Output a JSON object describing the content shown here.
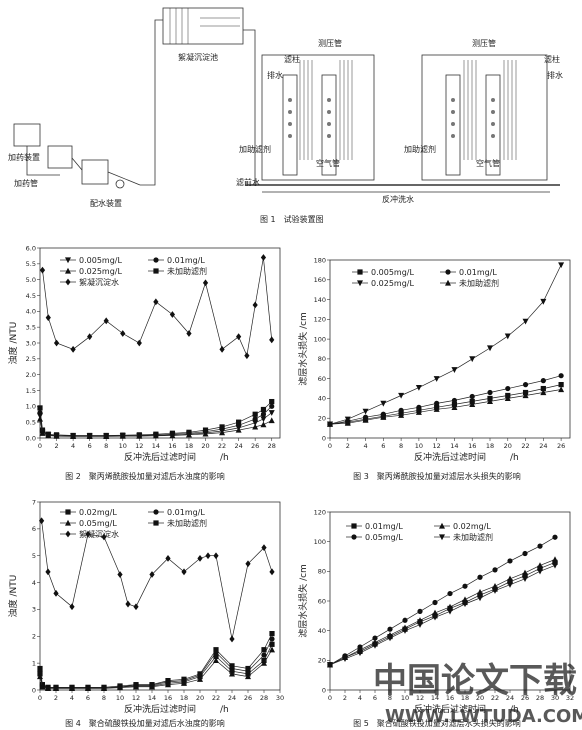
{
  "fig1": {
    "caption": "图 1　试验装置图",
    "labels": {
      "settle": "絮凝沉淀池",
      "dosing_device": "加药装置",
      "dosing_pipe": "加药管",
      "water_device": "配水装置",
      "piezo_left": "测压管",
      "piezo_right": "测压管",
      "column_left": "滤柱",
      "column_right": "滤柱",
      "drain_left": "排水",
      "drain_right": "排水",
      "aid_left": "加助滤剂",
      "aid_right": "加助滤剂",
      "air_left": "空气管",
      "air_right": "空气管",
      "filtered": "滤前水",
      "backwash": "反冲洗水"
    }
  },
  "fig2": {
    "caption": "图 2　聚丙烯酰胺投加量对滤后水浊度的影响",
    "chart_data": {
      "type": "line",
      "xlabel": "反冲洗后过滤时间",
      "xunit": "/h",
      "ylabel": "浊度 /NTU",
      "xlim": [
        0,
        29
      ],
      "ylim": [
        0,
        6.0
      ],
      "xticks": [
        0,
        2,
        4,
        6,
        8,
        10,
        12,
        14,
        16,
        18,
        20,
        22,
        24,
        26,
        28
      ],
      "yticks": [
        0.0,
        0.5,
        1.0,
        1.5,
        2.0,
        2.5,
        3.0,
        3.5,
        4.0,
        4.5,
        5.0,
        5.5,
        6.0
      ],
      "legend": [
        "0.005mg/L",
        "0.01mg/L",
        "0.025mg/L",
        "未加助滤剂",
        "絮凝沉淀水"
      ],
      "series": [
        {
          "name": "絮凝沉淀水",
          "marker": "diamond",
          "x": [
            0.3,
            1,
            2,
            4,
            6,
            8,
            10,
            12,
            14,
            16,
            18,
            20,
            22,
            24,
            25,
            26,
            27,
            28
          ],
          "y": [
            5.3,
            3.8,
            3.0,
            2.8,
            3.2,
            3.7,
            3.3,
            3.0,
            4.3,
            3.9,
            3.3,
            4.9,
            2.8,
            3.2,
            2.6,
            4.2,
            5.7,
            3.1
          ]
        },
        {
          "name": "未加助滤剂",
          "marker": "square",
          "x": [
            0,
            0.3,
            1,
            2,
            4,
            6,
            8,
            10,
            12,
            14,
            16,
            18,
            20,
            22,
            24,
            26,
            27,
            28
          ],
          "y": [
            0.95,
            0.25,
            0.12,
            0.1,
            0.08,
            0.08,
            0.08,
            0.09,
            0.1,
            0.12,
            0.15,
            0.18,
            0.25,
            0.35,
            0.5,
            0.75,
            0.9,
            1.15
          ]
        },
        {
          "name": "0.01mg/L",
          "marker": "circle",
          "x": [
            0,
            0.3,
            1,
            2,
            4,
            6,
            8,
            10,
            12,
            14,
            16,
            18,
            20,
            22,
            24,
            26,
            27,
            28
          ],
          "y": [
            0.8,
            0.2,
            0.1,
            0.08,
            0.07,
            0.07,
            0.07,
            0.08,
            0.08,
            0.1,
            0.12,
            0.15,
            0.2,
            0.28,
            0.4,
            0.6,
            0.75,
            1.0
          ]
        },
        {
          "name": "0.005mg/L",
          "marker": "tri-down",
          "x": [
            0,
            0.3,
            1,
            2,
            4,
            6,
            8,
            10,
            12,
            14,
            16,
            18,
            20,
            22,
            24,
            26,
            27,
            28
          ],
          "y": [
            0.7,
            0.18,
            0.09,
            0.07,
            0.06,
            0.06,
            0.06,
            0.07,
            0.07,
            0.08,
            0.1,
            0.12,
            0.16,
            0.22,
            0.32,
            0.48,
            0.6,
            0.8
          ]
        },
        {
          "name": "0.025mg/L",
          "marker": "tri-up",
          "x": [
            0,
            0.3,
            1,
            2,
            4,
            6,
            8,
            10,
            12,
            14,
            16,
            18,
            20,
            22,
            24,
            26,
            27,
            28
          ],
          "y": [
            0.6,
            0.15,
            0.08,
            0.06,
            0.05,
            0.05,
            0.05,
            0.06,
            0.06,
            0.07,
            0.08,
            0.1,
            0.13,
            0.17,
            0.25,
            0.35,
            0.42,
            0.55
          ]
        }
      ]
    }
  },
  "fig3": {
    "caption": "图 3　聚丙烯酰胺投加量对滤层水头损失的影响",
    "chart_data": {
      "type": "line",
      "xlabel": "反冲洗后过滤时间",
      "xunit": "/h",
      "ylabel": "滤层水头损失 /cm",
      "xlim": [
        0,
        27
      ],
      "ylim": [
        0,
        180
      ],
      "xticks": [
        0,
        2,
        4,
        6,
        8,
        10,
        12,
        14,
        16,
        18,
        20,
        22,
        24,
        26
      ],
      "yticks": [
        0,
        20,
        40,
        60,
        80,
        100,
        120,
        140,
        160,
        180
      ],
      "legend": [
        "0.005mg/L",
        "0.01mg/L",
        "0.025mg/L",
        "未加助滤剂"
      ],
      "series": [
        {
          "name": "0.025mg/L",
          "marker": "tri-down",
          "x": [
            0,
            2,
            4,
            6,
            8,
            10,
            12,
            14,
            16,
            18,
            20,
            22,
            24,
            26
          ],
          "y": [
            14,
            19,
            27,
            35,
            43,
            51,
            60,
            69,
            80,
            91,
            103,
            118,
            138,
            175
          ]
        },
        {
          "name": "0.01mg/L",
          "marker": "circle",
          "x": [
            0,
            2,
            4,
            6,
            8,
            10,
            12,
            14,
            16,
            18,
            20,
            22,
            24,
            26
          ],
          "y": [
            14,
            17,
            21,
            24,
            28,
            31,
            35,
            38,
            42,
            46,
            50,
            54,
            58,
            63
          ]
        },
        {
          "name": "0.005mg/L",
          "marker": "square",
          "x": [
            0,
            2,
            4,
            6,
            8,
            10,
            12,
            14,
            16,
            18,
            20,
            22,
            24,
            26
          ],
          "y": [
            14,
            16,
            19,
            22,
            25,
            28,
            31,
            34,
            37,
            40,
            43,
            46,
            50,
            54
          ]
        },
        {
          "name": "未加助滤剂",
          "marker": "tri-up",
          "x": [
            0,
            2,
            4,
            6,
            8,
            10,
            12,
            14,
            16,
            18,
            20,
            22,
            24,
            26
          ],
          "y": [
            14,
            15,
            18,
            21,
            23,
            26,
            29,
            31,
            34,
            37,
            40,
            43,
            46,
            49
          ]
        }
      ]
    }
  },
  "fig4": {
    "caption": "图 4　聚合硫酸铁投加量对滤后水浊度的影响",
    "chart_data": {
      "type": "line",
      "xlabel": "反冲洗后过滤时间",
      "xunit": "/h",
      "ylabel": "浊度 /NTU",
      "xlim": [
        0,
        30
      ],
      "ylim": [
        0,
        7
      ],
      "xticks": [
        0,
        2,
        4,
        6,
        8,
        10,
        12,
        14,
        16,
        18,
        20,
        22,
        24,
        26,
        28,
        30
      ],
      "yticks": [
        0,
        1,
        2,
        3,
        4,
        5,
        6,
        7
      ],
      "legend": [
        "0.02mg/L",
        "0.01mg/L",
        "0.05mg/L",
        "未加助滤剂",
        "絮凝沉淀水"
      ],
      "series": [
        {
          "name": "絮凝沉淀水",
          "marker": "diamond",
          "x": [
            0.2,
            1,
            2,
            4,
            6,
            8,
            10,
            11,
            12,
            14,
            16,
            18,
            20,
            21,
            22,
            24,
            26,
            28,
            29
          ],
          "y": [
            6.3,
            4.4,
            3.6,
            3.1,
            5.8,
            5.7,
            4.3,
            3.2,
            3.1,
            4.3,
            4.9,
            4.4,
            4.9,
            5.0,
            5.0,
            1.9,
            4.7,
            5.3,
            4.4
          ]
        },
        {
          "name": "未加助滤剂",
          "marker": "square",
          "x": [
            0,
            0.3,
            1,
            2,
            4,
            6,
            8,
            10,
            12,
            14,
            16,
            18,
            20,
            22,
            24,
            26,
            28,
            29
          ],
          "y": [
            0.8,
            0.2,
            0.1,
            0.1,
            0.1,
            0.1,
            0.1,
            0.15,
            0.2,
            0.2,
            0.35,
            0.4,
            0.6,
            1.5,
            0.9,
            0.8,
            1.5,
            2.1
          ]
        },
        {
          "name": "0.01mg/L",
          "marker": "circle",
          "x": [
            0,
            0.3,
            1,
            2,
            4,
            6,
            8,
            10,
            12,
            14,
            16,
            18,
            20,
            22,
            24,
            26,
            28,
            29
          ],
          "y": [
            0.7,
            0.18,
            0.08,
            0.08,
            0.08,
            0.08,
            0.08,
            0.12,
            0.18,
            0.18,
            0.3,
            0.35,
            0.55,
            1.4,
            0.8,
            0.7,
            1.3,
            1.9
          ]
        },
        {
          "name": "0.02mg/L",
          "marker": "square",
          "x": [
            0,
            0.3,
            1,
            2,
            4,
            6,
            8,
            10,
            12,
            14,
            16,
            18,
            20,
            22,
            24,
            26,
            28,
            29
          ],
          "y": [
            0.6,
            0.15,
            0.07,
            0.07,
            0.07,
            0.07,
            0.07,
            0.1,
            0.15,
            0.15,
            0.25,
            0.3,
            0.5,
            1.25,
            0.7,
            0.6,
            1.1,
            1.7
          ]
        },
        {
          "name": "0.05mg/L",
          "marker": "tri-up",
          "x": [
            0,
            0.3,
            1,
            2,
            4,
            6,
            8,
            10,
            12,
            14,
            16,
            18,
            20,
            22,
            24,
            26,
            28,
            29
          ],
          "y": [
            0.5,
            0.12,
            0.06,
            0.06,
            0.06,
            0.06,
            0.06,
            0.09,
            0.12,
            0.12,
            0.2,
            0.25,
            0.4,
            1.1,
            0.6,
            0.5,
            1.0,
            1.5
          ]
        }
      ]
    }
  },
  "fig5": {
    "caption": "图 5　聚合硫酸铁投加量对滤层水头损失的影响",
    "chart_data": {
      "type": "line",
      "xlabel": "反冲洗后过滤时间",
      "xunit": "/h",
      "ylabel": "滤层水头损失 /cm",
      "xlim": [
        0,
        32
      ],
      "ylim": [
        0,
        120
      ],
      "xticks": [
        0,
        2,
        4,
        6,
        8,
        10,
        12,
        14,
        16,
        18,
        20,
        22,
        24,
        26,
        28,
        30,
        32
      ],
      "yticks": [
        0,
        20,
        40,
        60,
        80,
        100,
        120
      ],
      "legend": [
        "0.01mg/L",
        "0.02mg/L",
        "0.05mg/L",
        "未加助滤剂"
      ],
      "series": [
        {
          "name": "0.05mg/L",
          "marker": "circle",
          "x": [
            0,
            2,
            4,
            6,
            8,
            10,
            12,
            14,
            16,
            18,
            20,
            22,
            24,
            26,
            28,
            30
          ],
          "y": [
            17,
            23,
            29,
            35,
            41,
            47,
            53,
            59,
            65,
            70,
            76,
            81,
            87,
            92,
            97,
            103
          ]
        },
        {
          "name": "0.02mg/L",
          "marker": "tri-up",
          "x": [
            0,
            2,
            4,
            6,
            8,
            10,
            12,
            14,
            16,
            18,
            20,
            22,
            24,
            26,
            28,
            30
          ],
          "y": [
            17,
            22,
            27,
            32,
            37,
            42,
            47,
            52,
            56,
            61,
            66,
            70,
            75,
            79,
            84,
            88
          ]
        },
        {
          "name": "0.01mg/L",
          "marker": "square",
          "x": [
            0,
            2,
            4,
            6,
            8,
            10,
            12,
            14,
            16,
            18,
            20,
            22,
            24,
            26,
            28,
            30
          ],
          "y": [
            17,
            22,
            26,
            31,
            36,
            41,
            46,
            50,
            55,
            59,
            64,
            68,
            73,
            77,
            82,
            86
          ]
        },
        {
          "name": "未加助滤剂",
          "marker": "tri-down",
          "x": [
            0,
            2,
            4,
            6,
            8,
            10,
            12,
            14,
            16,
            18,
            20,
            22,
            24,
            26,
            28,
            30
          ],
          "y": [
            17,
            21,
            25,
            30,
            35,
            40,
            44,
            49,
            53,
            58,
            62,
            67,
            71,
            75,
            80,
            84
          ]
        }
      ]
    }
  },
  "watermark": {
    "text": "中国论文下载",
    "url": "WWW.LWTUDA.COM"
  }
}
